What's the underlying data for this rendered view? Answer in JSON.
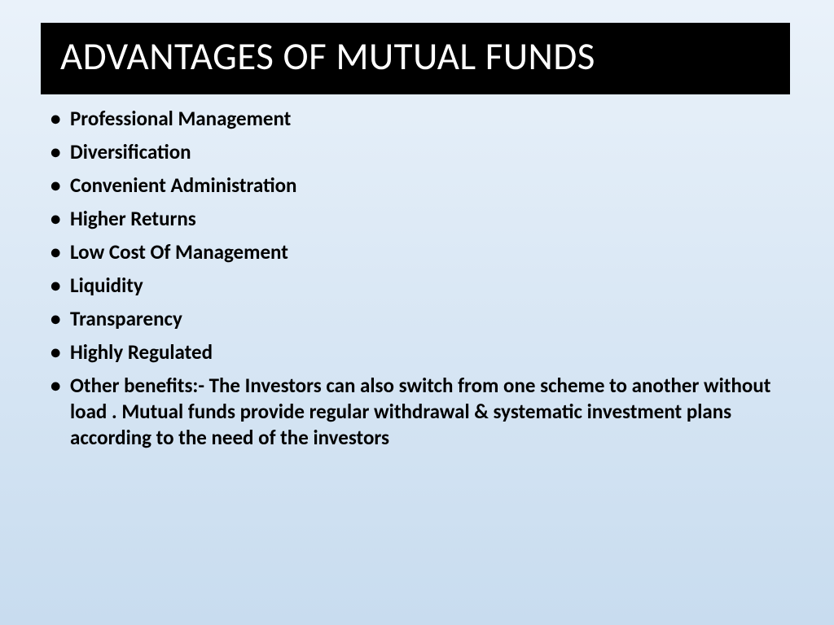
{
  "slide": {
    "title": "ADVANTAGES OF MUTUAL FUNDS",
    "bullets": [
      "Professional Management",
      "Diversification",
      "Convenient Administration",
      "Higher Returns",
      "Low Cost Of Management",
      "Liquidity",
      "Transparency",
      "Highly Regulated",
      "Other benefits:- The Investors can also switch from one scheme to another without load . Mutual funds provide regular withdrawal & systematic investment plans according to the need of the investors"
    ],
    "colors": {
      "title_bg": "#000000",
      "title_text": "#ffffff",
      "body_text": "#000000",
      "bg_gradient_top": "#eaf2fa",
      "bg_gradient_bottom": "#c8dcef"
    },
    "typography": {
      "title_fontsize": 47,
      "title_weight": 400,
      "bullet_fontsize": 25,
      "bullet_weight": 700,
      "font_family": "Calibri"
    }
  }
}
